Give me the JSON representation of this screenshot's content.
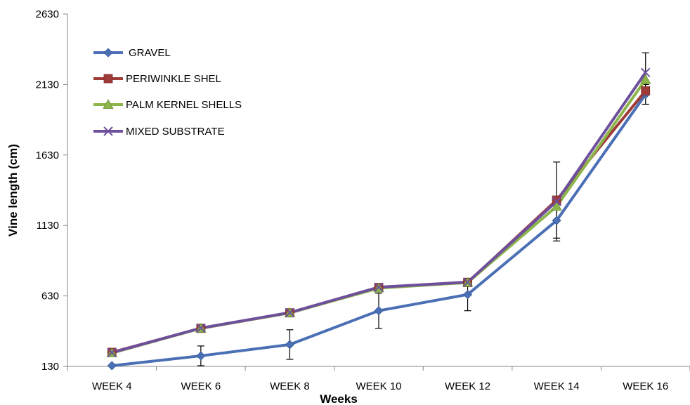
{
  "chart_data": {
    "type": "line",
    "xlabel": "Weeks",
    "ylabel": "Vine length (cm)",
    "categories": [
      "WEEK 4",
      "WEEK 6",
      "WEEK 8",
      "WEEK 10",
      "WEEK 12",
      "WEEK 14",
      "WEEK 16"
    ],
    "ylim": [
      130,
      2630
    ],
    "yticks": [
      130,
      630,
      1130,
      1630,
      2130,
      2630
    ],
    "grid": false,
    "legend_position": "top-left",
    "series": [
      {
        "name": "GRAVEL",
        "color": "#4a6fb5",
        "marker": "diamond",
        "values": [
          135,
          205,
          285,
          525,
          640,
          1165,
          2060
        ],
        "error": [
          0,
          70,
          105,
          125,
          115,
          125,
          70
        ]
      },
      {
        "name": "PERIWINKLE SHEL",
        "color": "#9e3a38",
        "marker": "square",
        "values": [
          230,
          400,
          510,
          690,
          725,
          1310,
          2085
        ],
        "error": [
          0,
          0,
          0,
          0,
          0,
          0,
          0
        ]
      },
      {
        "name": "PALM KERNEL SHELLS",
        "color": "#8cb54a",
        "marker": "triangle",
        "values": [
          225,
          400,
          510,
          685,
          725,
          1265,
          2165
        ],
        "error": [
          0,
          0,
          0,
          0,
          0,
          0,
          0
        ]
      },
      {
        "name": "MIXED SUBSTRATE",
        "color": "#6d4f9c",
        "marker": "x",
        "values": [
          228,
          402,
          512,
          692,
          728,
          1300,
          2215
        ],
        "error": [
          0,
          0,
          0,
          0,
          0,
          280,
          140
        ]
      }
    ]
  }
}
